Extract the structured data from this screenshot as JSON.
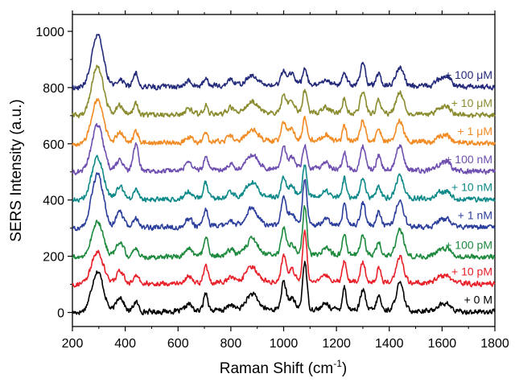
{
  "chart_data": {
    "type": "line",
    "xlabel": "Raman Shift (cm",
    "xlabel_sup": "-1",
    "xlabel_end": ")",
    "ylabel": "SERS Intensity (a.u.)",
    "xlim": [
      200,
      1800
    ],
    "ylim": [
      -50,
      1060
    ],
    "x_ticks": [
      200,
      400,
      600,
      800,
      1000,
      1200,
      1400,
      1600,
      1800
    ],
    "y_ticks": [
      0,
      200,
      400,
      600,
      800,
      1000
    ],
    "grid": false,
    "legend": "inline labels at right of each trace",
    "peak_positions": [
      295,
      380,
      440,
      640,
      705,
      800,
      880,
      1000,
      1030,
      1080,
      1160,
      1230,
      1300,
      1360,
      1440,
      1590,
      1620
    ],
    "series": [
      {
        "name": "+ 0 M",
        "color": "#000000",
        "offset": 0,
        "peak_heights": [
          145,
          55,
          35,
          25,
          65,
          20,
          55,
          95,
          40,
          170,
          20,
          80,
          70,
          50,
          95,
          20,
          25
        ]
      },
      {
        "name": "+ 10 pM",
        "color": "#e8212a",
        "offset": 100,
        "peak_heights": [
          115,
          45,
          30,
          25,
          60,
          20,
          50,
          85,
          40,
          175,
          20,
          75,
          70,
          45,
          90,
          20,
          25
        ]
      },
      {
        "name": "+ 100 pM",
        "color": "#1d8a3e",
        "offset": 195,
        "peak_heights": [
          125,
          55,
          30,
          30,
          70,
          20,
          55,
          90,
          40,
          170,
          25,
          75,
          75,
          50,
          95,
          20,
          25
        ]
      },
      {
        "name": "+ 1 nM",
        "color": "#2c3f9c",
        "offset": 300,
        "peak_heights": [
          190,
          55,
          35,
          30,
          65,
          20,
          60,
          95,
          45,
          165,
          20,
          75,
          80,
          50,
          95,
          20,
          25
        ]
      },
      {
        "name": "+ 10 nM",
        "color": "#0f8a8a",
        "offset": 400,
        "peak_heights": [
          150,
          45,
          35,
          25,
          55,
          20,
          55,
          70,
          40,
          110,
          20,
          65,
          70,
          40,
          80,
          20,
          25
        ]
      },
      {
        "name": "+ 100 nM",
        "color": "#6f4fb0",
        "offset": 500,
        "peak_heights": [
          165,
          40,
          95,
          25,
          45,
          20,
          50,
          75,
          40,
          80,
          20,
          60,
          80,
          50,
          85,
          20,
          30
        ]
      },
      {
        "name": "+ 1 μM",
        "color": "#f28b23",
        "offset": 600,
        "peak_heights": [
          155,
          40,
          40,
          20,
          35,
          20,
          40,
          65,
          40,
          80,
          20,
          55,
          75,
          45,
          75,
          20,
          25
        ]
      },
      {
        "name": "+ 10 μM",
        "color": "#8b8c2f",
        "offset": 700,
        "peak_heights": [
          175,
          35,
          40,
          20,
          30,
          20,
          40,
          60,
          40,
          75,
          20,
          50,
          80,
          45,
          75,
          20,
          25
        ]
      },
      {
        "name": "+ 100 μM",
        "color": "#242a7a",
        "offset": 800,
        "peak_heights": [
          185,
          30,
          50,
          20,
          30,
          20,
          30,
          45,
          40,
          60,
          20,
          45,
          80,
          40,
          65,
          25,
          35
        ]
      }
    ]
  }
}
